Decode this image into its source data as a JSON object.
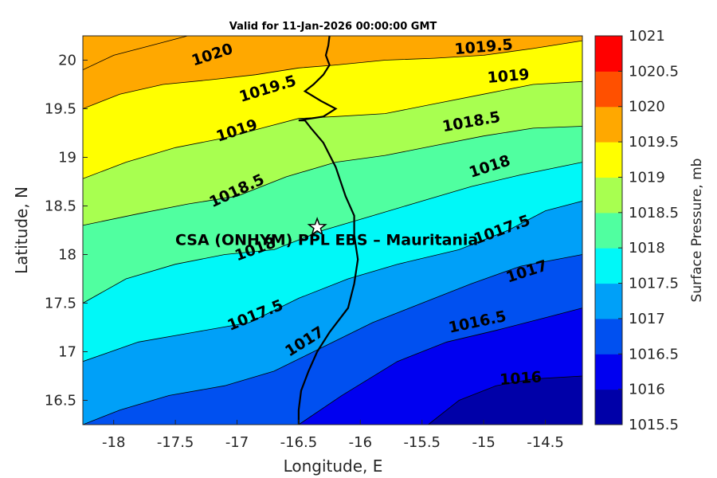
{
  "chart_data": {
    "type": "contour",
    "title": "Valid for 11-Jan-2026 00:00:00 GMT",
    "xlabel": "Longitude, E",
    "ylabel": "Latitude, N",
    "xlim": [
      -18.25,
      -14.2
    ],
    "ylim": [
      16.25,
      20.25
    ],
    "xticks": [
      "-18",
      "-17.5",
      "-17",
      "-16.5",
      "-16",
      "-15.5",
      "-15",
      "-14.5"
    ],
    "yticks": [
      "16.5",
      "17",
      "17.5",
      "18",
      "18.5",
      "19",
      "19.5",
      "20"
    ],
    "colorbar": {
      "label": "Surface Pressure, mb",
      "levels": [
        1015.5,
        1016,
        1016.5,
        1017,
        1017.5,
        1018,
        1018.5,
        1019,
        1019.5,
        1020,
        1020.5,
        1021
      ],
      "tick_labels": [
        "1015.5",
        "1016",
        "1016.5",
        "1017",
        "1017.5",
        "1018",
        "1018.5",
        "1019",
        "1019.5",
        "1020",
        "1020.5",
        "1021"
      ],
      "colors": [
        "#0000a8",
        "#0000f0",
        "#0050f0",
        "#00a0f8",
        "#00f8f8",
        "#50ffa0",
        "#a8ff50",
        "#ffff00",
        "#ffa800",
        "#ff5000",
        "#ff0000",
        "#a80000"
      ]
    },
    "contours": [
      {
        "level": 1016,
        "label": "1016",
        "points": [
          [
            -15.45,
            16.25
          ],
          [
            -15.2,
            16.5
          ],
          [
            -14.9,
            16.65
          ],
          [
            -14.6,
            16.72
          ],
          [
            -14.2,
            16.75
          ]
        ]
      },
      {
        "level": 1016.5,
        "label": "1016.5",
        "points": [
          [
            -16.5,
            16.25
          ],
          [
            -16.15,
            16.55
          ],
          [
            -15.7,
            16.9
          ],
          [
            -15.3,
            17.1
          ],
          [
            -14.9,
            17.22
          ],
          [
            -14.5,
            17.35
          ],
          [
            -14.2,
            17.45
          ]
        ]
      },
      {
        "level": 1017,
        "label": "1017",
        "points": [
          [
            -18.25,
            16.25
          ],
          [
            -17.95,
            16.4
          ],
          [
            -17.55,
            16.55
          ],
          [
            -17.1,
            16.65
          ],
          [
            -16.7,
            16.8
          ],
          [
            -16.3,
            17.05
          ],
          [
            -15.9,
            17.3
          ],
          [
            -15.5,
            17.5
          ],
          [
            -15.1,
            17.7
          ],
          [
            -14.7,
            17.88
          ],
          [
            -14.2,
            18.0
          ]
        ]
      },
      {
        "level": 1017.5,
        "label": "1017.5",
        "points": [
          [
            -18.25,
            16.9
          ],
          [
            -17.8,
            17.1
          ],
          [
            -17.35,
            17.2
          ],
          [
            -16.9,
            17.3
          ],
          [
            -16.5,
            17.55
          ],
          [
            -16.1,
            17.75
          ],
          [
            -15.7,
            17.9
          ],
          [
            -15.2,
            18.05
          ],
          [
            -14.8,
            18.25
          ],
          [
            -14.5,
            18.45
          ],
          [
            -14.2,
            18.55
          ]
        ]
      },
      {
        "level": 1018,
        "label": "1018",
        "points": [
          [
            -18.25,
            17.5
          ],
          [
            -17.9,
            17.75
          ],
          [
            -17.5,
            17.9
          ],
          [
            -17.1,
            18.0
          ],
          [
            -16.7,
            18.05
          ],
          [
            -16.3,
            18.25
          ],
          [
            -15.9,
            18.4
          ],
          [
            -15.5,
            18.55
          ],
          [
            -15.1,
            18.7
          ],
          [
            -14.7,
            18.82
          ],
          [
            -14.2,
            18.95
          ]
        ]
      },
      {
        "level": 1018.5,
        "label": "1018.5",
        "points": [
          [
            -18.25,
            18.3
          ],
          [
            -17.8,
            18.42
          ],
          [
            -17.4,
            18.52
          ],
          [
            -17.0,
            18.6
          ],
          [
            -16.6,
            18.8
          ],
          [
            -16.2,
            18.95
          ],
          [
            -15.8,
            19.02
          ],
          [
            -15.4,
            19.12
          ],
          [
            -15.0,
            19.22
          ],
          [
            -14.6,
            19.3
          ],
          [
            -14.2,
            19.32
          ]
        ]
      },
      {
        "level": 1019,
        "label": "1019",
        "points": [
          [
            -18.25,
            18.78
          ],
          [
            -17.9,
            18.95
          ],
          [
            -17.5,
            19.1
          ],
          [
            -17.1,
            19.2
          ],
          [
            -16.8,
            19.3
          ],
          [
            -16.5,
            19.4
          ],
          [
            -16.2,
            19.42
          ],
          [
            -15.8,
            19.45
          ],
          [
            -15.4,
            19.55
          ],
          [
            -15.0,
            19.65
          ],
          [
            -14.6,
            19.75
          ],
          [
            -14.2,
            19.78
          ]
        ]
      },
      {
        "level": 1019.5,
        "label": "1019.5",
        "points": [
          [
            -18.25,
            19.5
          ],
          [
            -17.95,
            19.65
          ],
          [
            -17.6,
            19.75
          ],
          [
            -17.2,
            19.8
          ],
          [
            -16.85,
            19.85
          ],
          [
            -16.5,
            19.92
          ],
          [
            -16.2,
            19.95
          ],
          [
            -15.8,
            20.0
          ],
          [
            -15.4,
            20.02
          ],
          [
            -15.0,
            20.05
          ],
          [
            -14.6,
            20.12
          ],
          [
            -14.2,
            20.2
          ]
        ]
      },
      {
        "level": 1020,
        "label": "1020",
        "points": [
          [
            -18.25,
            19.9
          ],
          [
            -18.0,
            20.05
          ],
          [
            -17.7,
            20.15
          ],
          [
            -17.4,
            20.25
          ]
        ]
      }
    ],
    "contour_labels": [
      {
        "text": "1020",
        "lon": -17.2,
        "lat": 20.05,
        "angle": -18
      },
      {
        "text": "1019.5",
        "lon": -16.75,
        "lat": 19.7,
        "angle": -17
      },
      {
        "text": "1019.5",
        "lon": -15.0,
        "lat": 20.13,
        "angle": -5
      },
      {
        "text": "1019",
        "lon": -14.8,
        "lat": 19.83,
        "angle": -5
      },
      {
        "text": "1019",
        "lon": -17.0,
        "lat": 19.27,
        "angle": -18
      },
      {
        "text": "1018.5",
        "lon": -15.1,
        "lat": 19.36,
        "angle": -10
      },
      {
        "text": "1018.5",
        "lon": -17.0,
        "lat": 18.65,
        "angle": -25
      },
      {
        "text": "1018",
        "lon": -14.95,
        "lat": 18.9,
        "angle": -18
      },
      {
        "text": "1018",
        "lon": -16.85,
        "lat": 18.05,
        "angle": -20
      },
      {
        "text": "1017.5",
        "lon": -14.85,
        "lat": 18.25,
        "angle": -20
      },
      {
        "text": "1017",
        "lon": -14.65,
        "lat": 17.82,
        "angle": -18
      },
      {
        "text": "1017.5",
        "lon": -16.85,
        "lat": 17.37,
        "angle": -22
      },
      {
        "text": "1016.5",
        "lon": -15.05,
        "lat": 17.3,
        "angle": -12
      },
      {
        "text": "1017",
        "lon": -16.45,
        "lat": 17.1,
        "angle": -32
      },
      {
        "text": "1016",
        "lon": -14.7,
        "lat": 16.72,
        "angle": -4
      }
    ],
    "coastline": [
      [
        -16.5,
        16.25
      ],
      [
        -16.5,
        16.4
      ],
      [
        -16.48,
        16.6
      ],
      [
        -16.42,
        16.8
      ],
      [
        -16.35,
        17.0
      ],
      [
        -16.25,
        17.2
      ],
      [
        -16.1,
        17.45
      ],
      [
        -16.05,
        17.7
      ],
      [
        -16.02,
        17.95
      ],
      [
        -16.05,
        18.2
      ],
      [
        -16.05,
        18.4
      ],
      [
        -16.12,
        18.6
      ],
      [
        -16.2,
        18.9
      ],
      [
        -16.3,
        19.15
      ],
      [
        -16.4,
        19.3
      ],
      [
        -16.45,
        19.38
      ],
      [
        -16.5,
        19.38
      ],
      [
        -16.3,
        19.42
      ],
      [
        -16.2,
        19.5
      ],
      [
        -16.32,
        19.58
      ],
      [
        -16.45,
        19.68
      ],
      [
        -16.38,
        19.75
      ],
      [
        -16.3,
        19.85
      ],
      [
        -16.25,
        19.95
      ],
      [
        -16.28,
        20.05
      ],
      [
        -16.26,
        20.15
      ],
      [
        -16.25,
        20.25
      ]
    ],
    "station": {
      "name": "CSA (ONHYM) PPL EBS  – Mauritania",
      "lon": -16.35,
      "lat": 18.28
    }
  }
}
